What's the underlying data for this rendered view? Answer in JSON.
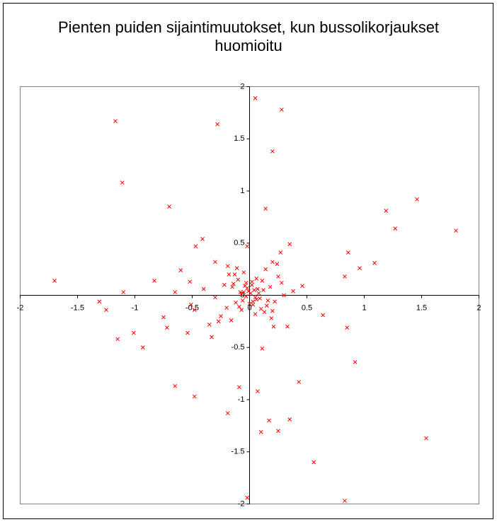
{
  "chart_data": {
    "type": "scatter",
    "title": "Pienten puiden sijaintimuutokset, kun bussolikorjaukset huomioitu",
    "color": "#ff0000",
    "xlim": [
      -2,
      2
    ],
    "ylim": [
      -2,
      2
    ],
    "xticks": [
      -2,
      -1.5,
      -1,
      -0.5,
      0,
      0.5,
      1,
      1.5,
      2
    ],
    "yticks": [
      -2,
      -1.5,
      -1,
      -0.5,
      0,
      0.5,
      1,
      1.5,
      2
    ],
    "grid": false,
    "x": [
      -1.17,
      0.05,
      0.28,
      -0.28,
      0.2,
      -1.11,
      -0.7,
      0.14,
      1.19,
      1.46,
      1.27,
      1.8,
      -0.41,
      -0.47,
      0.35,
      -0.02,
      0.86,
      0.27,
      -0.3,
      0.2,
      1.09,
      0.96,
      -0.6,
      0.83,
      -1.7,
      -0.83,
      -0.52,
      0.46,
      -0.65,
      -1.1,
      -1.31,
      -1.25,
      -0.51,
      -0.75,
      0.64,
      -0.48,
      -1.01,
      -0.72,
      -0.54,
      -0.33,
      -1.15,
      -0.93,
      0.85,
      0.11,
      0.92,
      0.43,
      -0.65,
      -0.48,
      -0.09,
      0.07,
      -0.19,
      0.17,
      0.35,
      0.1,
      0.25,
      1.54,
      0.56,
      -0.02,
      0.83,
      0.01,
      -0.03,
      0.04,
      -0.05,
      0.06,
      -0.02,
      0.03,
      -0.07,
      0.08,
      0.0,
      -0.04,
      0.05,
      0.02,
      -0.06,
      0.07,
      -0.01,
      0.09,
      -0.08,
      0.03,
      -0.03,
      0.12,
      -0.12,
      0.15,
      -0.14,
      0.1,
      -0.1,
      0.18,
      -0.2,
      0.22,
      -0.18,
      0.25,
      -0.25,
      0.14,
      -0.16,
      0.2,
      -0.22,
      0.3,
      -0.3,
      0.05,
      -0.05,
      0.11,
      -0.09,
      0.16,
      -0.13,
      0.28,
      -0.35,
      0.33,
      -0.4,
      0.24,
      -0.27,
      0.06,
      -0.07,
      0.19,
      -0.11,
      0.02,
      0.13,
      -0.15,
      0.38,
      -0.19,
      0.21
    ],
    "values": [
      1.67,
      1.89,
      1.78,
      1.64,
      1.38,
      1.08,
      0.85,
      0.83,
      0.81,
      0.92,
      0.64,
      0.62,
      0.54,
      0.47,
      0.49,
      0.47,
      0.41,
      0.41,
      0.32,
      0.32,
      0.31,
      0.26,
      0.24,
      0.18,
      0.14,
      0.14,
      0.13,
      0.09,
      0.03,
      0.03,
      -0.06,
      -0.14,
      -0.09,
      -0.21,
      -0.19,
      -0.14,
      -0.36,
      -0.31,
      -0.36,
      -0.4,
      -0.42,
      -0.5,
      -0.31,
      -0.51,
      -0.64,
      -0.83,
      -0.87,
      -0.97,
      -0.88,
      -0.92,
      -1.13,
      -1.2,
      -1.19,
      -1.31,
      -1.3,
      -1.37,
      -1.6,
      -1.94,
      -1.97,
      0.02,
      -0.01,
      0.05,
      0.03,
      -0.04,
      0.07,
      -0.06,
      0.01,
      0.02,
      -0.08,
      0.09,
      -0.02,
      0.1,
      -0.05,
      0.06,
      0.04,
      -0.03,
      0.03,
      -0.09,
      0.12,
      0.05,
      -0.07,
      -0.1,
      0.11,
      -0.13,
      0.15,
      0.08,
      -0.12,
      -0.06,
      0.2,
      0.18,
      -0.2,
      0.25,
      -0.24,
      -0.15,
      0.1,
      0.0,
      -0.02,
      -0.18,
      0.22,
      0.14,
      -0.11,
      -0.05,
      0.2,
      0.12,
      -0.28,
      -0.3,
      0.06,
      0.3,
      -0.25,
      0.16,
      -0.14,
      -0.22,
      0.26,
      0.13,
      -0.16,
      0.08,
      0.04,
      0.28,
      -0.3
    ]
  }
}
